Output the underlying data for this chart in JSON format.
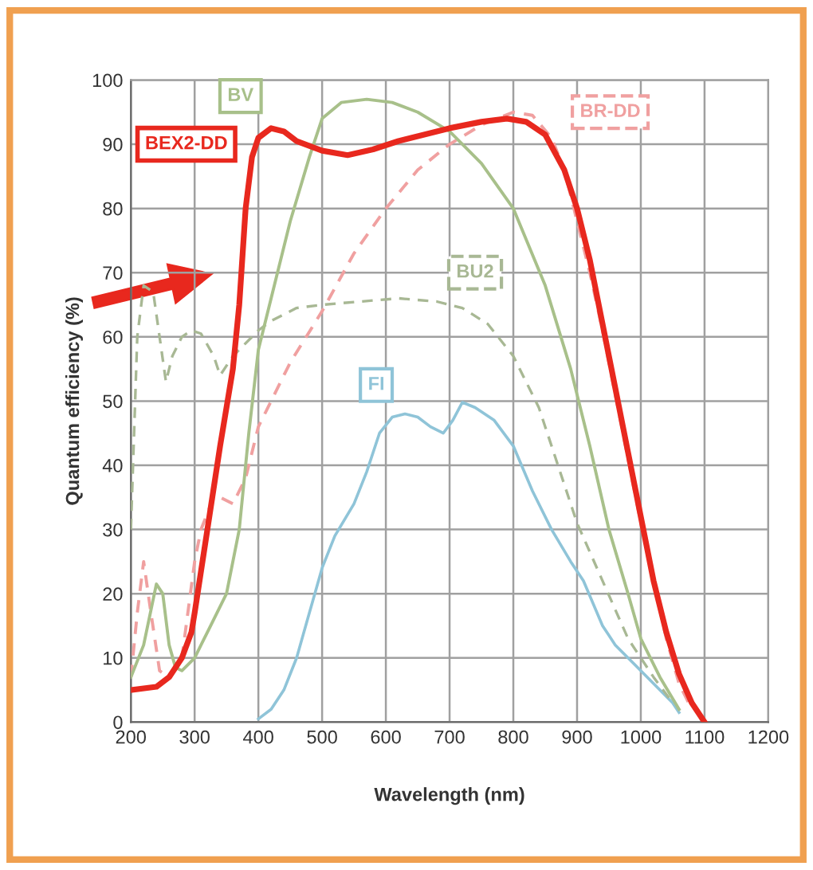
{
  "chart_data": {
    "type": "line",
    "xlabel": "Wavelength (nm)",
    "ylabel": "Quantum efficiency (%)",
    "xlim": [
      200,
      1200
    ],
    "ylim": [
      0,
      100
    ],
    "xticks": [
      200,
      300,
      400,
      500,
      600,
      700,
      800,
      900,
      1000,
      1100,
      1200
    ],
    "yticks": [
      0,
      10,
      20,
      30,
      40,
      50,
      60,
      70,
      80,
      90,
      100
    ],
    "grid": true,
    "legend": false,
    "marker": "none",
    "series": [
      {
        "name": "BEX2-DD",
        "color": "#e8281e",
        "line_style": "solid",
        "x": [
          200,
          240,
          260,
          280,
          295,
          300,
          320,
          340,
          360,
          370,
          380,
          390,
          400,
          420,
          440,
          460,
          500,
          540,
          580,
          620,
          660,
          700,
          750,
          790,
          820,
          850,
          880,
          900,
          920,
          940,
          960,
          980,
          1000,
          1020,
          1040,
          1060,
          1080,
          1100
        ],
        "values": [
          5,
          5.5,
          7,
          10,
          14,
          17,
          30,
          43,
          55,
          65,
          80,
          88,
          91,
          92.5,
          92,
          90.5,
          89,
          88.3,
          89.2,
          90.5,
          91.5,
          92.5,
          93.5,
          94,
          93.5,
          91.5,
          86,
          80,
          72,
          62,
          52,
          42,
          32,
          22,
          14,
          7.5,
          3,
          0
        ]
      },
      {
        "name": "BV",
        "color": "#a8c08a",
        "line_style": "solid",
        "x": [
          200,
          220,
          240,
          250,
          260,
          270,
          280,
          300,
          320,
          350,
          370,
          385,
          400,
          420,
          450,
          480,
          500,
          530,
          570,
          610,
          650,
          700,
          750,
          800,
          850,
          890,
          900,
          920,
          950,
          980,
          1000,
          1030,
          1060
        ],
        "values": [
          7,
          12,
          21.5,
          20,
          12,
          8.5,
          8,
          10,
          14,
          20,
          30,
          45,
          58,
          66,
          78,
          88,
          94,
          96.5,
          97,
          96.5,
          95,
          92,
          87,
          80,
          68,
          55,
          51,
          43,
          30,
          20,
          13,
          7,
          2
        ]
      },
      {
        "name": "BU2",
        "color": "#a8b894",
        "line_style": "dashed",
        "x": [
          200,
          205,
          210,
          220,
          235,
          245,
          255,
          265,
          280,
          295,
          310,
          330,
          340,
          360,
          380,
          400,
          420,
          460,
          500,
          560,
          620,
          680,
          720,
          760,
          800,
          840,
          870,
          900,
          940,
          980,
          1020,
          1050
        ],
        "values": [
          30,
          45,
          60,
          68,
          67,
          60,
          53,
          57,
          60,
          61,
          60.5,
          57,
          54,
          57,
          59,
          61,
          62.5,
          64.5,
          65,
          65.5,
          66,
          65.5,
          64.5,
          62,
          57,
          49,
          40,
          31,
          22,
          13,
          7,
          3
        ]
      },
      {
        "name": "BR-DD",
        "color": "#f0a0a0",
        "line_style": "dashed",
        "x": [
          200,
          210,
          220,
          230,
          245,
          260,
          280,
          300,
          310,
          330,
          340,
          360,
          380,
          400,
          420,
          450,
          500,
          550,
          600,
          650,
          700,
          750,
          800,
          830,
          860,
          880,
          900,
          920,
          940,
          960,
          980,
          1000,
          1020,
          1040,
          1060,
          1080
        ],
        "values": [
          7,
          17,
          25,
          18,
          8,
          7,
          10,
          25,
          30,
          35,
          35,
          34,
          38,
          46,
          50,
          56,
          64,
          73,
          80,
          86,
          90,
          93,
          95,
          94.5,
          91,
          86,
          78,
          70,
          61,
          51,
          41,
          31,
          22,
          13,
          6,
          2
        ]
      },
      {
        "name": "FI",
        "color": "#8fc4d8",
        "line_style": "solid",
        "x": [
          400,
          420,
          440,
          460,
          480,
          500,
          520,
          550,
          570,
          590,
          610,
          630,
          650,
          670,
          690,
          705,
          720,
          740,
          770,
          800,
          830,
          860,
          890,
          910,
          940,
          960,
          990,
          1020,
          1050,
          1060
        ],
        "values": [
          0.5,
          2,
          5,
          10,
          17,
          24,
          29,
          34,
          39,
          45,
          47.5,
          48,
          47.5,
          46,
          45,
          47,
          49.8,
          49,
          47,
          43,
          36,
          30,
          25,
          22,
          15,
          12,
          9,
          6,
          3,
          1.5
        ]
      }
    ]
  }
}
